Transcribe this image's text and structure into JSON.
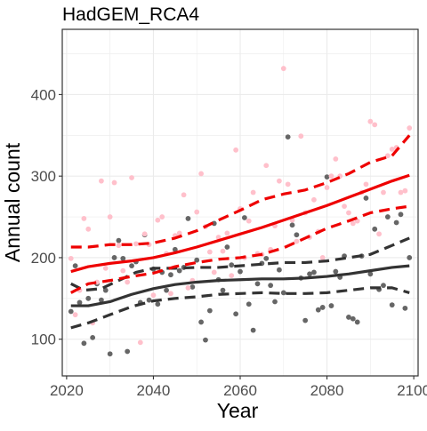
{
  "chart_data": {
    "type": "scatter",
    "title": "HadGEM_RCA4",
    "xlabel": "Year",
    "ylabel": "Annual count",
    "xlim": [
      2019,
      2101
    ],
    "ylim": [
      55,
      480
    ],
    "x_ticks": [
      2020,
      2040,
      2060,
      2080,
      2100
    ],
    "y_ticks": [
      100,
      200,
      300,
      400
    ],
    "x_tick_labels": [
      "2020",
      "2040",
      "2060",
      "2080",
      "2100"
    ],
    "y_tick_labels": [
      "100",
      "200",
      "300",
      "400"
    ],
    "grid": true,
    "legend": "none",
    "colors": {
      "points_a": "#666666",
      "points_b": "#ffc0cb",
      "trend_a": "#333333",
      "trend_b": "#ee0000",
      "grid": "#ebebeb",
      "panel_border": "#333333"
    },
    "series": [
      {
        "kind": "points",
        "color_key": "points_a",
        "points": [
          [
            2021,
            134
          ],
          [
            2022,
            190
          ],
          [
            2023,
            145
          ],
          [
            2024,
            95
          ],
          [
            2025,
            150
          ],
          [
            2026,
            102
          ],
          [
            2027,
            168
          ],
          [
            2028,
            148
          ],
          [
            2029,
            160
          ],
          [
            2030,
            82
          ],
          [
            2031,
            200
          ],
          [
            2032,
            221
          ],
          [
            2033,
            199
          ],
          [
            2034,
            85
          ],
          [
            2035,
            190
          ],
          [
            2036,
            195
          ],
          [
            2037,
            145
          ],
          [
            2038,
            228
          ],
          [
            2039,
            148
          ],
          [
            2040,
            186
          ],
          [
            2041,
            143
          ],
          [
            2042,
            182
          ],
          [
            2043,
            160
          ],
          [
            2044,
            179
          ],
          [
            2045,
            210
          ],
          [
            2046,
            184
          ],
          [
            2047,
            188
          ],
          [
            2048,
            248
          ],
          [
            2049,
            164
          ],
          [
            2050,
            197
          ],
          [
            2051,
            121
          ],
          [
            2052,
            99
          ],
          [
            2053,
            135
          ],
          [
            2054,
            242
          ],
          [
            2055,
            173
          ],
          [
            2056,
            160
          ],
          [
            2057,
            213
          ],
          [
            2058,
            191
          ],
          [
            2059,
            131
          ],
          [
            2060,
            183
          ],
          [
            2061,
            249
          ],
          [
            2062,
            143
          ],
          [
            2063,
            111
          ],
          [
            2064,
            168
          ],
          [
            2065,
            193
          ],
          [
            2066,
            199
          ],
          [
            2067,
            166
          ],
          [
            2068,
            146
          ],
          [
            2069,
            185
          ],
          [
            2070,
            157
          ],
          [
            2071,
            348
          ],
          [
            2072,
            240
          ],
          [
            2073,
            228
          ],
          [
            2074,
            175
          ],
          [
            2075,
            123
          ],
          [
            2076,
            180
          ],
          [
            2077,
            182
          ],
          [
            2078,
            136
          ],
          [
            2079,
            139
          ],
          [
            2080,
            299
          ],
          [
            2081,
            141
          ],
          [
            2082,
            183
          ],
          [
            2083,
            176
          ],
          [
            2084,
            202
          ],
          [
            2085,
            127
          ],
          [
            2086,
            125
          ],
          [
            2087,
            121
          ],
          [
            2088,
            202
          ],
          [
            2089,
            273
          ],
          [
            2090,
            180
          ],
          [
            2091,
            235
          ],
          [
            2092,
            161
          ],
          [
            2093,
            166
          ],
          [
            2094,
            250
          ],
          [
            2095,
            142
          ],
          [
            2096,
            243
          ],
          [
            2097,
            253
          ],
          [
            2098,
            138
          ],
          [
            2099,
            200
          ]
        ]
      },
      {
        "kind": "points",
        "color_key": "points_b",
        "points": [
          [
            2021,
            199
          ],
          [
            2022,
            130
          ],
          [
            2023,
            160
          ],
          [
            2024,
            248
          ],
          [
            2025,
            235
          ],
          [
            2026,
            120
          ],
          [
            2027,
            170
          ],
          [
            2028,
            294
          ],
          [
            2029,
            187
          ],
          [
            2030,
            250
          ],
          [
            2031,
            292
          ],
          [
            2032,
            215
          ],
          [
            2033,
            184
          ],
          [
            2034,
            170
          ],
          [
            2035,
            298
          ],
          [
            2036,
            217
          ],
          [
            2037,
            96
          ],
          [
            2038,
            229
          ],
          [
            2039,
            216
          ],
          [
            2040,
            154
          ],
          [
            2041,
            246
          ],
          [
            2042,
            250
          ],
          [
            2043,
            205
          ],
          [
            2044,
            156
          ],
          [
            2045,
            227
          ],
          [
            2046,
            230
          ],
          [
            2047,
            277
          ],
          [
            2048,
            163
          ],
          [
            2049,
            172
          ],
          [
            2050,
            256
          ],
          [
            2051,
            303
          ],
          [
            2052,
            238
          ],
          [
            2053,
            207
          ],
          [
            2054,
            182
          ],
          [
            2055,
            225
          ],
          [
            2056,
            208
          ],
          [
            2057,
            230
          ],
          [
            2058,
            178
          ],
          [
            2059,
            332
          ],
          [
            2060,
            260
          ],
          [
            2061,
            200
          ],
          [
            2062,
            245
          ],
          [
            2063,
            280
          ],
          [
            2064,
            205
          ],
          [
            2065,
            204
          ],
          [
            2066,
            313
          ],
          [
            2067,
            210
          ],
          [
            2068,
            239
          ],
          [
            2069,
            294
          ],
          [
            2070,
            432
          ],
          [
            2071,
            290
          ],
          [
            2072,
            246
          ],
          [
            2073,
            220
          ],
          [
            2074,
            349
          ],
          [
            2075,
            255
          ],
          [
            2076,
            225
          ],
          [
            2077,
            271
          ],
          [
            2078,
            232
          ],
          [
            2079,
            200
          ],
          [
            2080,
            286
          ],
          [
            2081,
            300
          ],
          [
            2082,
            321
          ],
          [
            2083,
            300
          ],
          [
            2084,
            263
          ],
          [
            2085,
            255
          ],
          [
            2086,
            242
          ],
          [
            2087,
            245
          ],
          [
            2088,
            280
          ],
          [
            2089,
            290
          ],
          [
            2090,
            367
          ],
          [
            2091,
            363
          ],
          [
            2092,
            229
          ],
          [
            2093,
            280
          ],
          [
            2094,
            325
          ],
          [
            2095,
            333
          ],
          [
            2096,
            335
          ],
          [
            2097,
            280
          ],
          [
            2098,
            282
          ],
          [
            2099,
            359
          ]
        ]
      },
      {
        "kind": "line",
        "color_key": "trend_a",
        "dash": "solid",
        "points": [
          [
            2021,
            141
          ],
          [
            2025,
            141
          ],
          [
            2030,
            146
          ],
          [
            2035,
            155
          ],
          [
            2040,
            162
          ],
          [
            2045,
            167
          ],
          [
            2050,
            170
          ],
          [
            2055,
            172
          ],
          [
            2060,
            173
          ],
          [
            2065,
            174
          ],
          [
            2070,
            174
          ],
          [
            2075,
            175
          ],
          [
            2080,
            177
          ],
          [
            2085,
            180
          ],
          [
            2090,
            184
          ],
          [
            2095,
            188
          ],
          [
            2099,
            190
          ]
        ]
      },
      {
        "kind": "line",
        "color_key": "trend_a",
        "dash": "dashed",
        "points": [
          [
            2021,
            168
          ],
          [
            2024,
            160
          ],
          [
            2028,
            162
          ],
          [
            2032,
            172
          ],
          [
            2036,
            182
          ],
          [
            2040,
            187
          ],
          [
            2045,
            187
          ],
          [
            2050,
            188
          ],
          [
            2055,
            188
          ],
          [
            2060,
            190
          ],
          [
            2065,
            192
          ],
          [
            2070,
            194
          ],
          [
            2075,
            194
          ],
          [
            2080,
            196
          ],
          [
            2085,
            200
          ],
          [
            2090,
            204
          ],
          [
            2095,
            215
          ],
          [
            2099,
            224
          ]
        ]
      },
      {
        "kind": "line",
        "color_key": "trend_a",
        "dash": "dashed",
        "points": [
          [
            2021,
            114
          ],
          [
            2025,
            120
          ],
          [
            2030,
            130
          ],
          [
            2035,
            140
          ],
          [
            2040,
            147
          ],
          [
            2045,
            150
          ],
          [
            2050,
            152
          ],
          [
            2055,
            155
          ],
          [
            2060,
            156
          ],
          [
            2065,
            157
          ],
          [
            2070,
            156
          ],
          [
            2075,
            156
          ],
          [
            2080,
            157
          ],
          [
            2085,
            160
          ],
          [
            2090,
            163
          ],
          [
            2095,
            163
          ],
          [
            2099,
            157
          ]
        ]
      },
      {
        "kind": "line",
        "color_key": "trend_b",
        "dash": "solid",
        "points": [
          [
            2021,
            183
          ],
          [
            2025,
            189
          ],
          [
            2030,
            193
          ],
          [
            2035,
            196
          ],
          [
            2040,
            200
          ],
          [
            2045,
            206
          ],
          [
            2050,
            213
          ],
          [
            2055,
            221
          ],
          [
            2060,
            229
          ],
          [
            2065,
            237
          ],
          [
            2070,
            246
          ],
          [
            2075,
            255
          ],
          [
            2080,
            264
          ],
          [
            2085,
            274
          ],
          [
            2090,
            284
          ],
          [
            2095,
            294
          ],
          [
            2099,
            301
          ]
        ]
      },
      {
        "kind": "line",
        "color_key": "trend_b",
        "dash": "dashed",
        "points": [
          [
            2021,
            213
          ],
          [
            2025,
            213
          ],
          [
            2030,
            216
          ],
          [
            2035,
            216
          ],
          [
            2040,
            218
          ],
          [
            2045,
            224
          ],
          [
            2050,
            233
          ],
          [
            2055,
            246
          ],
          [
            2060,
            258
          ],
          [
            2065,
            271
          ],
          [
            2070,
            278
          ],
          [
            2075,
            283
          ],
          [
            2080,
            292
          ],
          [
            2085,
            303
          ],
          [
            2090,
            317
          ],
          [
            2095,
            325
          ],
          [
            2099,
            350
          ]
        ]
      },
      {
        "kind": "line",
        "color_key": "trend_b",
        "dash": "dashed",
        "points": [
          [
            2021,
            157
          ],
          [
            2025,
            168
          ],
          [
            2030,
            172
          ],
          [
            2035,
            177
          ],
          [
            2040,
            181
          ],
          [
            2045,
            189
          ],
          [
            2050,
            194
          ],
          [
            2055,
            198
          ],
          [
            2060,
            200
          ],
          [
            2065,
            204
          ],
          [
            2070,
            212
          ],
          [
            2075,
            224
          ],
          [
            2080,
            236
          ],
          [
            2085,
            245
          ],
          [
            2090,
            255
          ],
          [
            2095,
            260
          ],
          [
            2099,
            263
          ]
        ]
      }
    ]
  }
}
